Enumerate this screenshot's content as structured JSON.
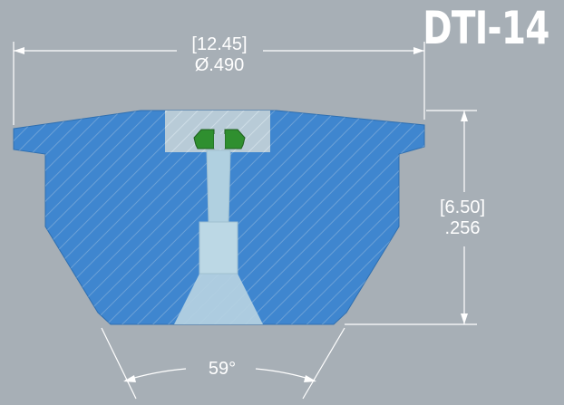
{
  "title": "DTI-14",
  "dimensions": {
    "width_metric": "[12.45]",
    "width_imperial": "Ø.490",
    "height_metric": "[6.50]",
    "height_imperial": ".256",
    "angle": "59°"
  },
  "colors": {
    "background": "#a7afb6",
    "body": "#3f86cf",
    "bore": "#b8d2e0",
    "seal": "#2e8b2e",
    "dimension_line": "#ffffff"
  }
}
